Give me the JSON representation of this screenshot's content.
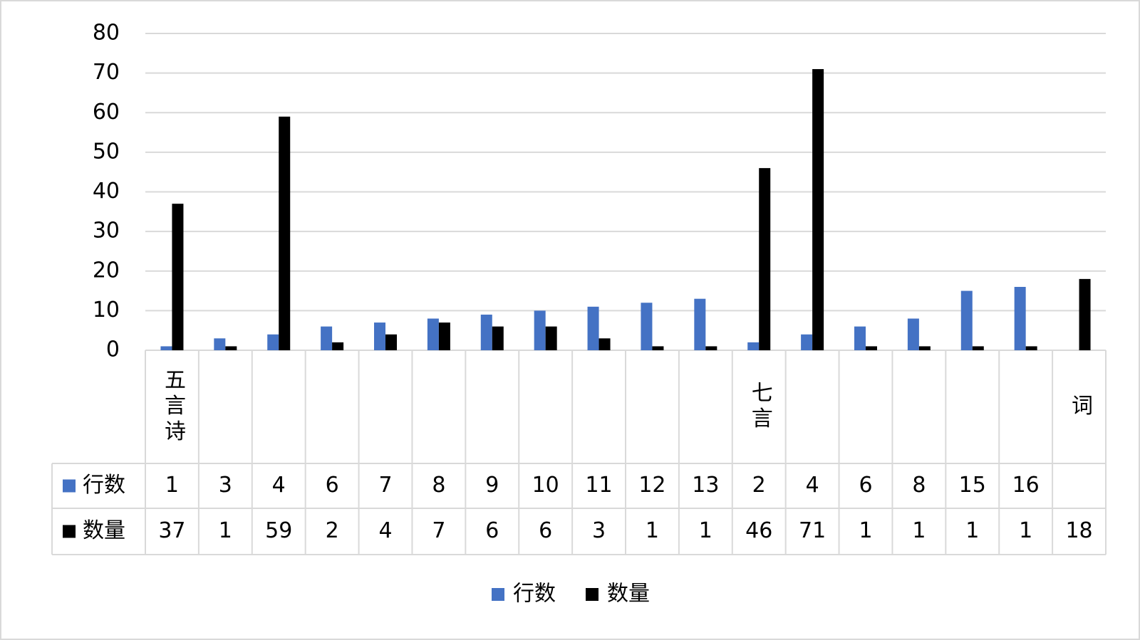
{
  "chart_data": {
    "type": "bar",
    "categories": [
      "五言诗",
      null,
      null,
      null,
      null,
      null,
      null,
      null,
      null,
      null,
      null,
      "七言",
      null,
      null,
      null,
      null,
      null,
      "词"
    ],
    "series": [
      {
        "name": "行数",
        "color": "#4472c4",
        "values": [
          1,
          3,
          4,
          6,
          7,
          8,
          9,
          10,
          11,
          12,
          13,
          2,
          4,
          6,
          8,
          15,
          16,
          null
        ]
      },
      {
        "name": "数量",
        "color": "#000000",
        "values": [
          37,
          1,
          59,
          2,
          4,
          7,
          6,
          6,
          3,
          1,
          1,
          46,
          71,
          1,
          1,
          1,
          1,
          18
        ]
      }
    ],
    "ylim": [
      0,
      80
    ],
    "yticks": [
      0,
      10,
      20,
      30,
      40,
      50,
      60,
      70,
      80
    ],
    "grid": true,
    "data_table": true,
    "legend": "bottom"
  }
}
